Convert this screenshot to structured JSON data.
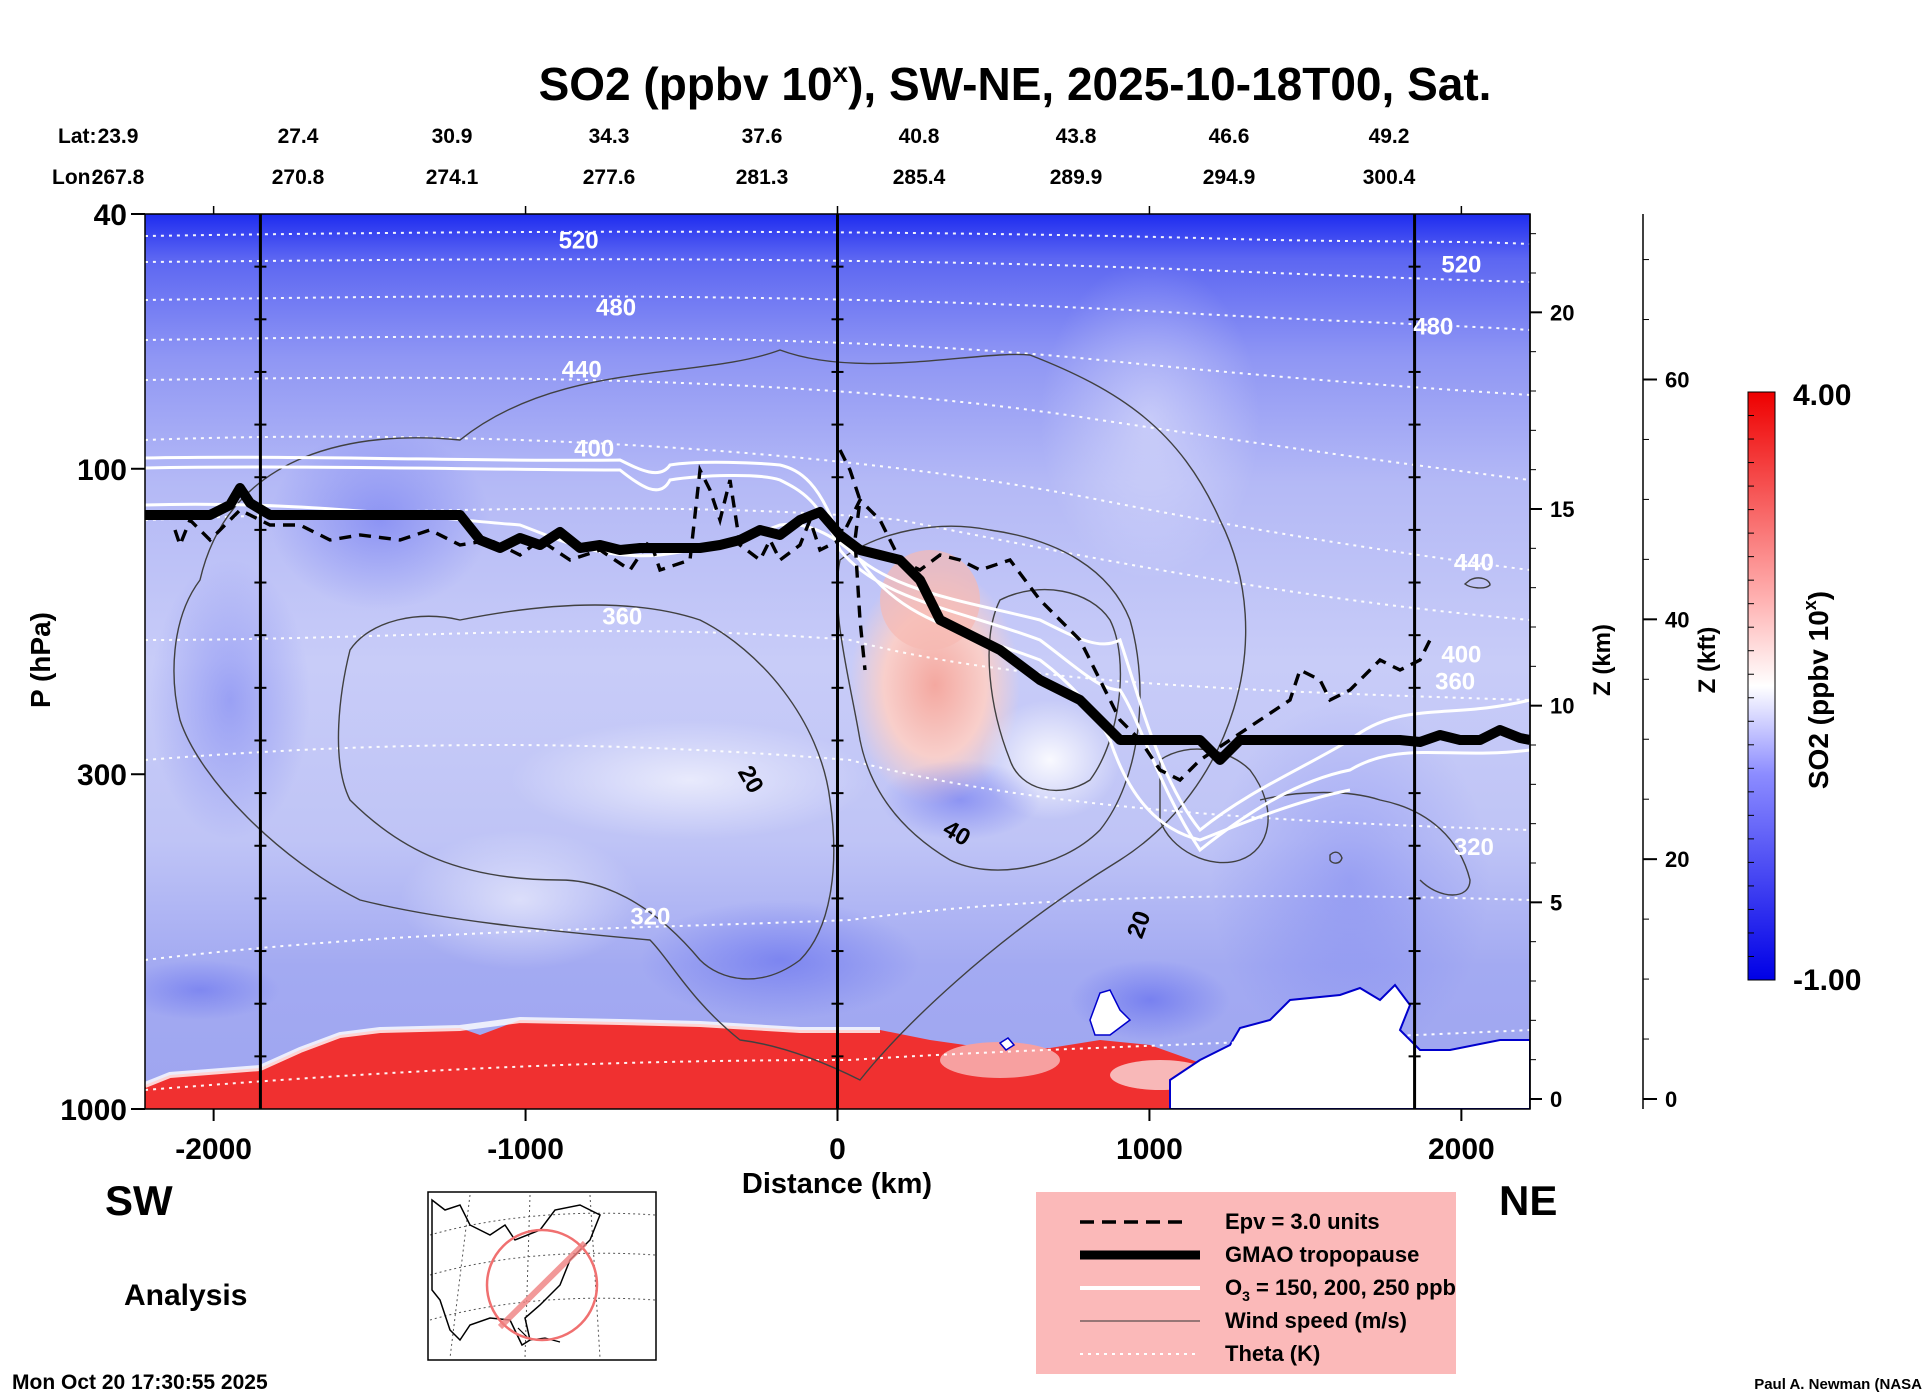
{
  "chart_data": {
    "type": "heatmap",
    "title": "SO2 (ppbv 10",
    "title_sup": "x",
    "title_rest": "), SW-NE, 2025-10-18T00, Sat.",
    "lat_label": "Lat:",
    "lon_label": "Lon:",
    "lat": [
      "23.9",
      "27.4",
      "30.9",
      "34.3",
      "37.6",
      "40.8",
      "43.8",
      "46.6",
      "49.2"
    ],
    "lon": [
      "267.8",
      "270.8",
      "274.1",
      "277.6",
      "281.3",
      "285.4",
      "289.9",
      "294.9",
      "300.4"
    ],
    "xlabel": "Distance (km)",
    "xlim": [
      -2220,
      2220
    ],
    "x_ticks": [
      -2000,
      -1000,
      0,
      1000,
      2000
    ],
    "x_tick_labels": [
      "-2000",
      "-1000",
      "0",
      "1000",
      "2000"
    ],
    "ylabel": "P (hPa)",
    "ylim": [
      1000,
      40
    ],
    "p_ticks": [
      40,
      100,
      300,
      1000
    ],
    "p_tick_labels": [
      "40",
      "100",
      "300",
      "1000"
    ],
    "z_km_label": "Z (km)",
    "z_km_ticks": [
      0,
      5,
      10,
      15,
      20
    ],
    "z_kft_label": "Z (kft)",
    "z_kft_ticks": [
      0,
      20,
      40,
      60
    ],
    "colorbar_label": "SO2 (ppbv 10",
    "colorbar_label_sup": "x",
    "colorbar_label_end": ")",
    "colorbar_max": "4.00",
    "colorbar_min": "-1.00",
    "colors": {
      "low": "#1a1aff",
      "mid": "#ffffff",
      "high": "#ff1a1a"
    },
    "section_lines_km": [
      -1850,
      0,
      1850
    ],
    "theta_labels": [
      {
        "x": -830,
        "p": 44,
        "text": "520"
      },
      {
        "x": -710,
        "p": 56,
        "text": "480"
      },
      {
        "x": -820,
        "p": 70,
        "text": "440"
      },
      {
        "x": -780,
        "p": 93,
        "text": "400"
      },
      {
        "x": -690,
        "p": 170,
        "text": "360"
      },
      {
        "x": -600,
        "p": 500,
        "text": "320"
      },
      {
        "x": 2000,
        "p": 48,
        "text": "520"
      },
      {
        "x": 1910,
        "p": 60,
        "text": "480"
      },
      {
        "x": 2040,
        "p": 140,
        "text": "440"
      },
      {
        "x": 2000,
        "p": 195,
        "text": "400"
      },
      {
        "x": 1980,
        "p": 215,
        "text": "360"
      },
      {
        "x": 2040,
        "p": 390,
        "text": "320"
      }
    ],
    "wind_labels": [
      {
        "x": -300,
        "p": 310,
        "text": "20",
        "rot": 60
      },
      {
        "x": 370,
        "p": 380,
        "text": "40",
        "rot": 30
      },
      {
        "x": 990,
        "p": 520,
        "text": "20",
        "rot": -70
      }
    ],
    "side_labels": {
      "sw": "SW",
      "ne": "NE"
    },
    "analysis_label": "Analysis",
    "legend": [
      {
        "label": "Epv = 3.0 units",
        "style": "dashed"
      },
      {
        "label": "GMAO tropopause",
        "style": "thick"
      },
      {
        "label": "O3 = 150, 200, 250 ppb",
        "label_main": "O",
        "label_sub": "3",
        "label_rest": " = 150, 200, 250 ppb",
        "style": "white"
      },
      {
        "label": "Wind speed (m/s)",
        "style": "thin"
      },
      {
        "label": "Theta (K)",
        "style": "dotted"
      }
    ],
    "footer_left": "Mon Oct 20 17:30:55 2025",
    "footer_right": "Paul A. Newman (NASA"
  }
}
